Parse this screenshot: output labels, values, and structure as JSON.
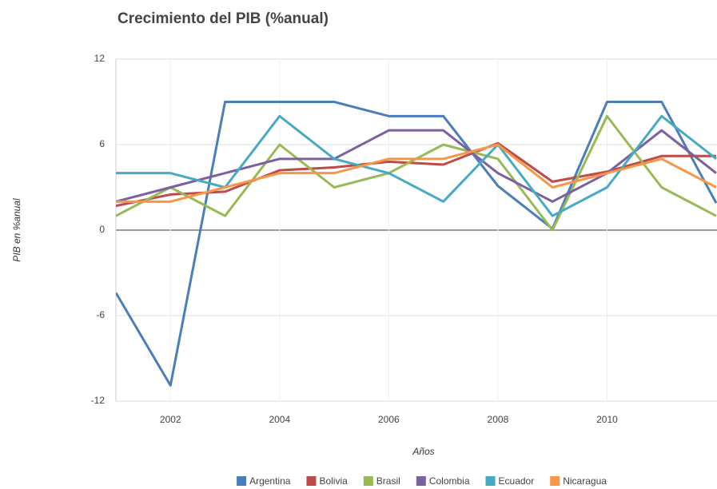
{
  "chart_data": {
    "type": "line",
    "title": "Crecimiento del PIB (%anual)",
    "x_label": "Años",
    "y_label": "PIB en %anual",
    "x": [
      2001,
      2002,
      2003,
      2004,
      2005,
      2006,
      2007,
      2008,
      2009,
      2010,
      2011,
      2012
    ],
    "xlim": [
      2001,
      2012
    ],
    "xticks": [
      2002,
      2004,
      2006,
      2008,
      2010
    ],
    "ylim": [
      -12,
      12
    ],
    "yticks": [
      -12,
      -6,
      0,
      6,
      12
    ],
    "grid": true,
    "legend": "bottom",
    "series": [
      {
        "name": "Argentina",
        "color": "#4a7ebb",
        "values": [
          -4.4,
          -10.9,
          9.0,
          9.0,
          9.0,
          8.0,
          8.0,
          3.1,
          0.1,
          9.0,
          9.0,
          1.9
        ]
      },
      {
        "name": "Bolivia",
        "color": "#be4b48",
        "values": [
          1.7,
          2.5,
          2.7,
          4.2,
          4.4,
          4.8,
          4.6,
          6.1,
          3.4,
          4.1,
          5.2,
          5.2
        ]
      },
      {
        "name": "Brasil",
        "color": "#98b954",
        "values": [
          1.0,
          3.0,
          1.0,
          6.0,
          3.0,
          4.0,
          6.0,
          5.0,
          0.0,
          8.0,
          3.0,
          1.0
        ]
      },
      {
        "name": "Colombia",
        "color": "#7d60a0",
        "values": [
          2.0,
          3.0,
          4.0,
          5.0,
          5.0,
          7.0,
          7.0,
          4.0,
          2.0,
          4.0,
          7.0,
          4.0
        ]
      },
      {
        "name": "Ecuador",
        "color": "#46aac5",
        "values": [
          4.0,
          4.0,
          3.0,
          8.0,
          5.0,
          4.0,
          2.0,
          6.0,
          1.0,
          3.0,
          8.0,
          5.0
        ]
      },
      {
        "name": "Nicaragua",
        "color": "#f79646",
        "values": [
          2.0,
          2.0,
          3.0,
          4.0,
          4.0,
          5.0,
          5.0,
          6.0,
          3.0,
          4.0,
          5.0,
          3.0
        ]
      }
    ]
  }
}
